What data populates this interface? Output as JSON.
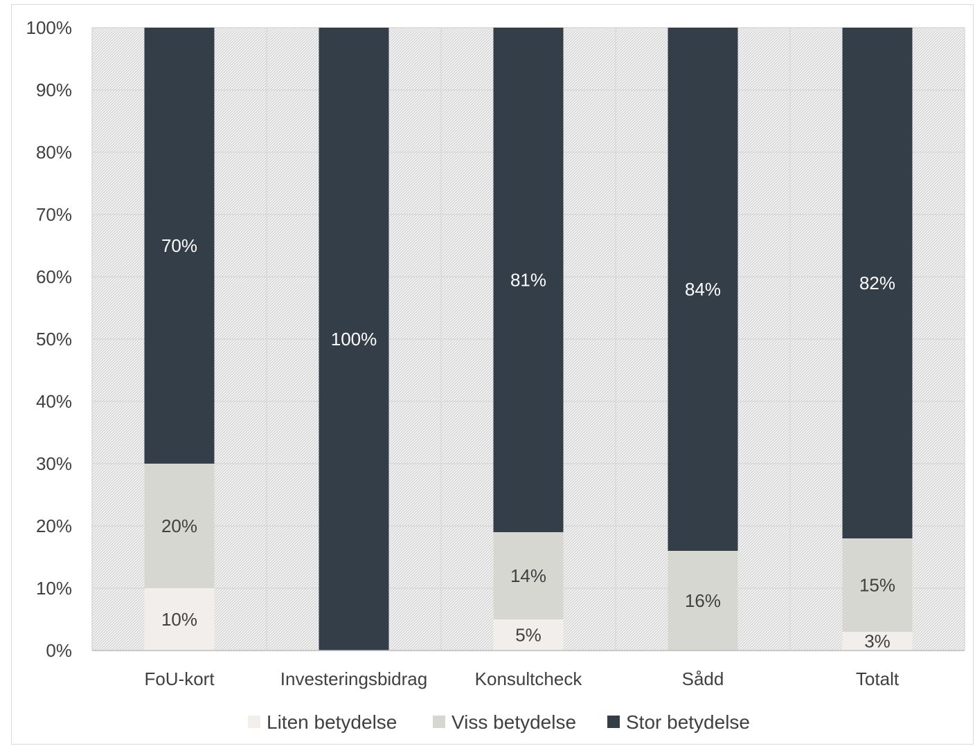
{
  "chart_data": {
    "type": "bar",
    "stacked": true,
    "categories": [
      "FoU-kort",
      "Investeringsbidrag",
      "Konsultcheck",
      "Sådd",
      "Totalt"
    ],
    "series": [
      {
        "name": "Liten betydelse",
        "color": "#f1eeeb",
        "label_color": "#404040",
        "values": [
          10,
          0,
          5,
          0,
          3
        ],
        "labels": [
          "10%",
          "",
          "5%",
          "",
          "3%"
        ]
      },
      {
        "name": "Viss betydelse",
        "color": "#d7d7d2",
        "label_color": "#404040",
        "values": [
          20,
          0,
          14,
          16,
          15
        ],
        "labels": [
          "20%",
          "",
          "14%",
          "16%",
          "15%"
        ]
      },
      {
        "name": "Stor betydelse",
        "color": "#343e48",
        "label_color": "#ffffff",
        "values": [
          70,
          100,
          81,
          84,
          82
        ],
        "labels": [
          "70%",
          "100%",
          "81%",
          "84%",
          "82%"
        ]
      }
    ],
    "y_ticks": [
      "0%",
      "10%",
      "20%",
      "30%",
      "40%",
      "50%",
      "60%",
      "70%",
      "80%",
      "90%",
      "100%"
    ],
    "ylim": [
      0,
      100
    ],
    "grid": true,
    "legend": "bottom-center"
  }
}
